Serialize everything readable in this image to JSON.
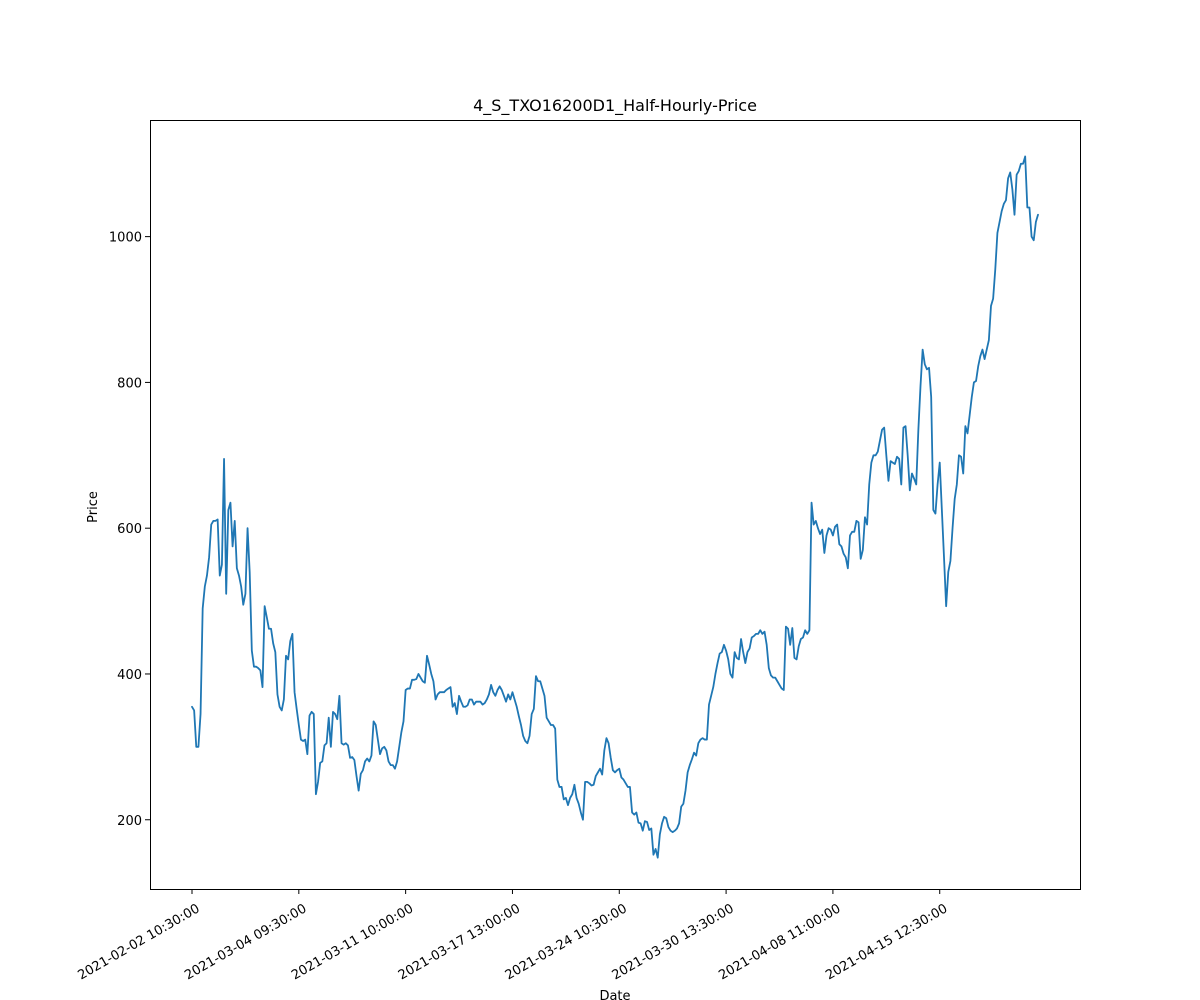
{
  "chart_data": {
    "type": "line",
    "title": "4_S_TXO16200D1_Half-Hourly-Price",
    "xlabel": "Date",
    "ylabel": "Price",
    "ylim": [
      105,
      1160
    ],
    "y_ticks": [
      200,
      400,
      600,
      800,
      1000
    ],
    "x_ticks": [
      {
        "index": 0,
        "label": "2021-02-02 10:30:00"
      },
      {
        "index": 50,
        "label": "2021-03-04 09:30:00"
      },
      {
        "index": 100,
        "label": "2021-03-11 10:00:00"
      },
      {
        "index": 150,
        "label": "2021-03-17 13:00:00"
      },
      {
        "index": 200,
        "label": "2021-03-24 10:30:00"
      },
      {
        "index": 250,
        "label": "2021-03-30 13:30:00"
      },
      {
        "index": 300,
        "label": "2021-04-08 11:00:00"
      },
      {
        "index": 350,
        "label": "2021-04-15 12:30:00"
      }
    ],
    "grid": false,
    "legend": "none",
    "line_color": "#1f77b4",
    "series": [
      {
        "values": [
          355,
          350,
          300,
          300,
          345,
          490,
          520,
          535,
          560,
          605,
          610,
          610,
          612,
          535,
          550,
          695,
          510,
          625,
          635,
          575,
          610,
          545,
          535,
          520,
          495,
          510,
          600,
          540,
          432,
          410,
          410,
          408,
          405,
          382,
          493,
          478,
          462,
          462,
          442,
          430,
          372,
          355,
          350,
          365,
          425,
          420,
          445,
          455,
          375,
          352,
          330,
          310,
          308,
          310,
          290,
          343,
          348,
          345,
          235,
          252,
          278,
          280,
          302,
          305,
          340,
          300,
          348,
          345,
          338,
          370,
          305,
          303,
          305,
          302,
          285,
          286,
          282,
          260,
          240,
          263,
          268,
          280,
          284,
          280,
          288,
          335,
          330,
          310,
          290,
          298,
          300,
          295,
          280,
          275,
          275,
          270,
          280,
          300,
          320,
          335,
          378,
          380,
          380,
          392,
          392,
          393,
          400,
          395,
          390,
          388,
          425,
          413,
          400,
          390,
          365,
          372,
          375,
          375,
          375,
          378,
          380,
          382,
          355,
          360,
          345,
          370,
          362,
          355,
          355,
          357,
          365,
          365,
          358,
          362,
          362,
          362,
          358,
          360,
          365,
          372,
          385,
          375,
          370,
          378,
          383,
          378,
          370,
          362,
          372,
          365,
          375,
          365,
          355,
          342,
          330,
          315,
          308,
          305,
          315,
          345,
          352,
          397,
          390,
          390,
          380,
          370,
          340,
          335,
          330,
          330,
          325,
          255,
          245,
          245,
          228,
          230,
          220,
          230,
          235,
          248,
          230,
          222,
          210,
          200,
          252,
          252,
          250,
          247,
          248,
          260,
          265,
          270,
          262,
          295,
          312,
          305,
          285,
          268,
          265,
          268,
          270,
          258,
          255,
          250,
          245,
          245,
          210,
          207,
          210,
          196,
          195,
          185,
          198,
          197,
          186,
          188,
          152,
          160,
          148,
          180,
          195,
          204,
          202,
          190,
          185,
          183,
          185,
          188,
          195,
          218,
          222,
          240,
          265,
          275,
          283,
          292,
          288,
          305,
          310,
          312,
          310,
          310,
          358,
          370,
          382,
          400,
          415,
          428,
          430,
          440,
          432,
          420,
          400,
          395,
          430,
          422,
          420,
          448,
          430,
          415,
          430,
          435,
          450,
          452,
          455,
          455,
          460,
          455,
          458,
          440,
          408,
          398,
          395,
          395,
          390,
          385,
          380,
          378,
          465,
          462,
          440,
          463,
          422,
          420,
          438,
          448,
          450,
          460,
          455,
          460,
          635,
          605,
          610,
          600,
          592,
          598,
          566,
          590,
          600,
          598,
          590,
          602,
          605,
          578,
          575,
          565,
          560,
          545,
          590,
          595,
          595,
          610,
          608,
          558,
          570,
          615,
          605,
          660,
          690,
          700,
          700,
          705,
          720,
          735,
          738,
          700,
          665,
          692,
          690,
          688,
          698,
          695,
          660,
          738,
          740,
          700,
          652,
          675,
          668,
          660,
          735,
          795,
          845,
          825,
          818,
          820,
          780,
          625,
          620,
          660,
          690,
          625,
          560,
          493,
          540,
          555,
          600,
          640,
          660,
          700,
          698,
          675,
          740,
          730,
          755,
          780,
          800,
          802,
          822,
          836,
          845,
          832,
          845,
          858,
          905,
          915,
          955,
          1005,
          1020,
          1035,
          1045,
          1050,
          1080,
          1088,
          1065,
          1030,
          1085,
          1090,
          1100,
          1100,
          1110,
          1040,
          1040,
          1000,
          995,
          1020,
          1030
        ]
      }
    ]
  }
}
